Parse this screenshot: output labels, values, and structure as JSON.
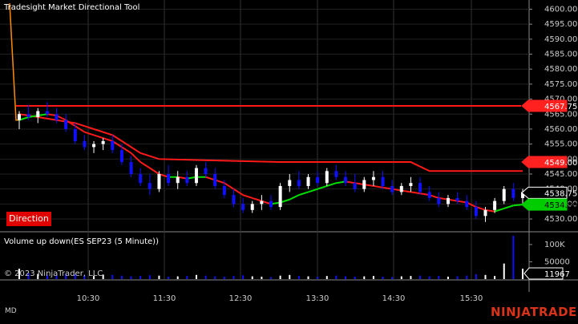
{
  "chart": {
    "title": "Tradesight Market Directional Tool",
    "indicator_label": "Direction",
    "volume_title": "Volume up down(ES SEP23 (5 Minute))",
    "copyright": "© 2023 NinjaTrader, LLC",
    "status": "MD",
    "brand": "NINJATRADER"
  },
  "chart_data": {
    "type": "candlestick",
    "x_ticks": [
      "10:30",
      "11:30",
      "12:30",
      "13:30",
      "14:30",
      "15:30"
    ],
    "price_axis": {
      "ticks": [
        "4600.00",
        "4595.00",
        "4590.00",
        "4585.00",
        "4580.00",
        "4575.00",
        "4570.00",
        "4565.00",
        "4560.00",
        "4555.00",
        "4550.00",
        "4545.00",
        "4540.00",
        "4535.00",
        "4530.00"
      ],
      "ylim": [
        4526,
        4602
      ]
    },
    "volume_axis": {
      "ticks": [
        "100K",
        "50000"
      ],
      "ylim": [
        0,
        130000
      ]
    },
    "price_badges": [
      {
        "label": "4567.75",
        "value": 4567.75,
        "color": "#ff2020"
      },
      {
        "label": "4549.00",
        "value": 4549.0,
        "color": "#ff2020"
      },
      {
        "label": "4538.75",
        "value": 4538.75,
        "color": "#000000"
      },
      {
        "label": "4534.80",
        "value": 4534.8,
        "color": "#00cc00"
      }
    ],
    "volume_badge": {
      "label": "11967",
      "value": 11967
    },
    "colors": {
      "up": "#ffffff",
      "down": "#1010ff",
      "resistance": "#ff1a1a",
      "support_line": "#ff1a1a",
      "ma_up": "#00e000",
      "ma_down": "#ff1a1a",
      "spike": "#ff8c00"
    },
    "candles": [
      [
        4563,
        4566,
        4560,
        4565
      ],
      [
        4565,
        4568,
        4563,
        4564
      ],
      [
        4564,
        4567,
        4562,
        4566
      ],
      [
        4566,
        4569,
        4564,
        4565
      ],
      [
        4565,
        4567,
        4562,
        4563
      ],
      [
        4563,
        4565,
        4559,
        4560
      ],
      [
        4560,
        4562,
        4555,
        4556
      ],
      [
        4556,
        4558,
        4553,
        4554
      ],
      [
        4554,
        4556,
        4552,
        4555
      ],
      [
        4555,
        4557,
        4553,
        4556
      ],
      [
        4556,
        4558,
        4552,
        4553
      ],
      [
        4553,
        4555,
        4548,
        4549
      ],
      [
        4549,
        4551,
        4544,
        4545
      ],
      [
        4545,
        4547,
        4541,
        4542
      ],
      [
        4542,
        4545,
        4538,
        4540
      ],
      [
        4540,
        4546,
        4539,
        4545
      ],
      [
        4545,
        4548,
        4541,
        4542
      ],
      [
        4542,
        4546,
        4540,
        4544
      ],
      [
        4544,
        4546,
        4541,
        4542
      ],
      [
        4542,
        4548,
        4541,
        4547
      ],
      [
        4547,
        4549,
        4544,
        4545
      ],
      [
        4545,
        4547,
        4540,
        4541
      ],
      [
        4541,
        4543,
        4537,
        4538
      ],
      [
        4538,
        4540,
        4534,
        4535
      ],
      [
        4535,
        4537,
        4532,
        4533
      ],
      [
        4533,
        4536,
        4532,
        4535
      ],
      [
        4535,
        4538,
        4533,
        4536
      ],
      [
        4536,
        4538,
        4533,
        4534
      ],
      [
        4534,
        4542,
        4533,
        4541
      ],
      [
        4541,
        4545,
        4539,
        4543
      ],
      [
        4543,
        4546,
        4540,
        4541
      ],
      [
        4541,
        4545,
        4540,
        4544
      ],
      [
        4544,
        4546,
        4541,
        4542
      ],
      [
        4542,
        4547,
        4541,
        4546
      ],
      [
        4546,
        4548,
        4543,
        4544
      ],
      [
        4544,
        4546,
        4541,
        4542
      ],
      [
        4542,
        4545,
        4539,
        4540
      ],
      [
        4540,
        4544,
        4539,
        4543
      ],
      [
        4543,
        4546,
        4541,
        4544
      ],
      [
        4544,
        4546,
        4540,
        4541
      ],
      [
        4541,
        4543,
        4538,
        4539
      ],
      [
        4539,
        4542,
        4538,
        4541
      ],
      [
        4541,
        4544,
        4539,
        4542
      ],
      [
        4542,
        4544,
        4538,
        4539
      ],
      [
        4539,
        4541,
        4536,
        4537
      ],
      [
        4537,
        4539,
        4534,
        4535
      ],
      [
        4535,
        4538,
        4534,
        4537
      ],
      [
        4537,
        4539,
        4535,
        4536
      ],
      [
        4536,
        4538,
        4533,
        4534
      ],
      [
        4534,
        4536,
        4530,
        4531
      ],
      [
        4531,
        4534,
        4529,
        4533
      ],
      [
        4533,
        4537,
        4532,
        4536
      ],
      [
        4536,
        4541,
        4535,
        4540
      ],
      [
        4540,
        4542,
        4536,
        4537
      ],
      [
        4537,
        4540,
        4535,
        4539
      ]
    ],
    "volume": [
      30000,
      18000,
      15000,
      12000,
      10000,
      16000,
      14000,
      11000,
      9000,
      13000,
      12000,
      10000,
      8000,
      9000,
      11000,
      10000,
      7000,
      8000,
      9000,
      12000,
      10000,
      8000,
      7000,
      9000,
      11000,
      8000,
      7000,
      6000,
      10000,
      12000,
      9000,
      8000,
      7000,
      9000,
      10000,
      8000,
      7000,
      8000,
      9000,
      7000,
      6000,
      8000,
      9000,
      10000,
      8000,
      9000,
      7000,
      8000,
      10000,
      14000,
      12000,
      9000,
      45000,
      125000,
      30000
    ],
    "resistance": [
      4567.75,
      4567.75
    ],
    "stop_line": [
      [
        0,
        4565
      ],
      [
        6,
        4562
      ],
      [
        10,
        4558
      ],
      [
        13,
        4552
      ],
      [
        15,
        4550
      ],
      [
        28,
        4549
      ],
      [
        42,
        4549
      ],
      [
        44,
        4546
      ],
      [
        54,
        4546
      ]
    ],
    "ma": [
      4563,
      4564,
      4564.5,
      4565,
      4564.5,
      4563,
      4561,
      4559,
      4558,
      4557,
      4556,
      4554,
      4552,
      4549,
      4547,
      4545,
      4544,
      4544,
      4543.5,
      4544,
      4544,
      4543,
      4542,
      4540,
      4538,
      4537,
      4536,
      4535,
      4535.5,
      4536.5,
      4538,
      4539,
      4540,
      4541,
      4542,
      4542.5,
      4542,
      4541.5,
      4541,
      4540.5,
      4540,
      4539.5,
      4539,
      4538.5,
      4538,
      4537,
      4536.5,
      4536,
      4535.5,
      4534,
      4533,
      4532.5,
      4533.5,
      4534.5,
      4534.8
    ]
  }
}
